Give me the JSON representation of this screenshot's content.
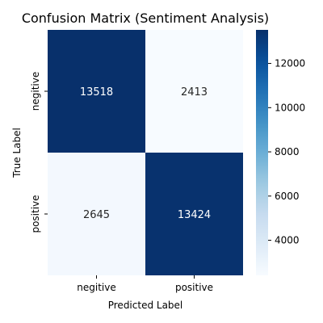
{
  "chart_data": {
    "type": "heatmap",
    "title": "Confusion Matrix (Sentiment Analysis)",
    "xlabel": "Predicted Label",
    "ylabel": "True Label",
    "x_categories": [
      "negitive",
      "positive"
    ],
    "y_categories": [
      "negitive",
      "positive"
    ],
    "values": [
      [
        13518,
        2413
      ],
      [
        2645,
        13424
      ]
    ],
    "colormap": "Blues",
    "color_low": "#f7fbff",
    "color_high": "#08306b",
    "colorbar": {
      "range": [
        2413,
        13518
      ],
      "ticks": [
        4000,
        6000,
        8000,
        10000,
        12000
      ]
    },
    "grid": false,
    "legend": "colorbar-right"
  }
}
